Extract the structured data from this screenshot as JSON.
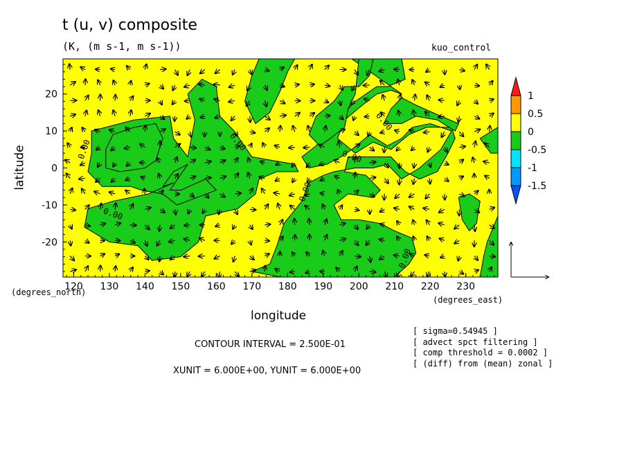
{
  "header": {
    "title": "t (u, v) composite",
    "subtitle": "(K, (m s-1, m s-1))",
    "experiment": "kuo_control"
  },
  "footer": {
    "contour_interval": "CONTOUR INTERVAL = 2.500E-01",
    "units": "XUNIT = 6.000E+00, YUNIT = 6.000E+00"
  },
  "notes": [
    "[ sigma=0.54945 ]",
    "[ advect spct filtering ]",
    "[ comp threshold = 0.0002 ]",
    "[ (diff) from (mean) zonal ]"
  ],
  "chart_data": {
    "type": "heatmap",
    "title": "t (u, v) composite",
    "subtitle": "(K, (m s-1, m s-1))",
    "xlabel": "longitude",
    "ylabel": "latitude",
    "x_unit_label": "(degrees_east)",
    "y_unit_label": "(degrees_north)",
    "xlim": [
      117,
      239
    ],
    "ylim": [
      -29.5,
      29.5
    ],
    "x_ticks": [
      120,
      130,
      140,
      150,
      160,
      170,
      180,
      190,
      200,
      210,
      220,
      230
    ],
    "y_ticks": [
      -20,
      -10,
      0,
      10,
      20
    ],
    "colorbar": {
      "levels": [
        "1",
        "0.5",
        "0",
        "-0.5",
        "-1",
        "-1.5"
      ],
      "colors": [
        "#ff1a1a",
        "#ff9900",
        "#ffff00",
        "#1acc1a",
        "#00e5ff",
        "#0099ff",
        "#0055ff"
      ]
    },
    "contour_labels": [
      {
        "text": "0.00",
        "x": 123,
        "y": 5
      },
      {
        "text": "0.00",
        "x": 131,
        "y": -12.5
      },
      {
        "text": "0.00",
        "x": 166,
        "y": 7
      },
      {
        "text": "0.00",
        "x": 185,
        "y": -6.5
      },
      {
        "text": "0.00",
        "x": 198,
        "y": 3
      },
      {
        "text": "0.00",
        "x": 207,
        "y": 12.5
      },
      {
        "text": "0.00",
        "x": 213,
        "y": -24.5
      }
    ],
    "regions_positive": [
      [
        [
          117,
          29.5
        ],
        [
          239,
          29.5
        ],
        [
          239,
          -29.5
        ],
        [
          117,
          -29.5
        ]
      ]
    ],
    "regions_negative": [
      [
        [
          125,
          10
        ],
        [
          137,
          13
        ],
        [
          147,
          14
        ],
        [
          148,
          8
        ],
        [
          152,
          3
        ],
        [
          154,
          13
        ],
        [
          152,
          20
        ],
        [
          156,
          24
        ],
        [
          160,
          22
        ],
        [
          161,
          14
        ],
        [
          165,
          10
        ],
        [
          170,
          3
        ],
        [
          176,
          2
        ],
        [
          182,
          1
        ],
        [
          183,
          -1
        ],
        [
          177,
          -1
        ],
        [
          172,
          -3
        ],
        [
          171,
          -7
        ],
        [
          166,
          -11
        ],
        [
          157,
          -13
        ],
        [
          155,
          -20
        ],
        [
          150,
          -24
        ],
        [
          142,
          -25
        ],
        [
          138,
          -21
        ],
        [
          130,
          -20
        ],
        [
          123,
          -16
        ],
        [
          124,
          -11
        ],
        [
          131,
          -9
        ],
        [
          141,
          -7
        ],
        [
          148,
          -4
        ],
        [
          145,
          -5
        ],
        [
          148,
          -1
        ],
        [
          152,
          1
        ],
        [
          147,
          -6
        ],
        [
          150,
          -6
        ],
        [
          157,
          -3
        ],
        [
          160,
          -6
        ],
        [
          149,
          -10
        ],
        [
          145,
          -7
        ],
        [
          139,
          -6
        ],
        [
          136,
          -5
        ],
        [
          128,
          -5
        ],
        [
          124,
          -1
        ],
        [
          125,
          4
        ]
      ],
      [
        [
          129,
          5
        ],
        [
          131,
          9
        ],
        [
          137,
          11
        ],
        [
          143,
          12
        ],
        [
          145,
          8
        ],
        [
          143,
          2
        ],
        [
          140,
          0
        ],
        [
          133,
          -1
        ],
        [
          129,
          0
        ]
      ],
      [
        [
          172,
          29.5
        ],
        [
          180,
          29.5
        ],
        [
          182,
          29.5
        ],
        [
          180,
          26
        ],
        [
          178,
          21
        ],
        [
          175,
          15
        ],
        [
          171,
          12
        ],
        [
          168,
          18
        ],
        [
          170,
          25
        ]
      ],
      [
        [
          198,
          29.5
        ],
        [
          212,
          29.5
        ],
        [
          213,
          24
        ],
        [
          208,
          22
        ],
        [
          205,
          22
        ],
        [
          202,
          20
        ],
        [
          199,
          18
        ],
        [
          196,
          15
        ],
        [
          192,
          12
        ],
        [
          188,
          6
        ],
        [
          184,
          3
        ],
        [
          186,
          0
        ],
        [
          191,
          1
        ],
        [
          195,
          3
        ],
        [
          198,
          5
        ],
        [
          203,
          9
        ],
        [
          208,
          6
        ],
        [
          212,
          8
        ],
        [
          215,
          11
        ],
        [
          220,
          12
        ],
        [
          226,
          10
        ],
        [
          223,
          5
        ],
        [
          217,
          0
        ],
        [
          212,
          -3
        ],
        [
          208,
          1
        ],
        [
          204,
          0
        ],
        [
          199,
          0
        ],
        [
          193,
          -1
        ],
        [
          190,
          -2
        ],
        [
          186,
          -4
        ],
        [
          184,
          -9
        ],
        [
          179,
          -15
        ],
        [
          177,
          -21
        ],
        [
          175,
          -26
        ],
        [
          170,
          -28
        ],
        [
          178,
          -29.5
        ],
        [
          195,
          -29.5
        ],
        [
          210,
          -29.5
        ],
        [
          214,
          -26
        ],
        [
          216,
          -23
        ],
        [
          215,
          -19
        ],
        [
          210,
          -17
        ],
        [
          206,
          -15
        ],
        [
          200,
          -14
        ],
        [
          195,
          -14
        ],
        [
          193,
          -10
        ],
        [
          197,
          -7
        ],
        [
          204,
          -8
        ],
        [
          206,
          -6
        ],
        [
          202,
          -2
        ],
        [
          196,
          -1
        ],
        [
          197,
          3
        ],
        [
          202,
          3
        ],
        [
          209,
          3
        ],
        [
          213,
          -1
        ],
        [
          217,
          -3
        ],
        [
          222,
          -1
        ],
        [
          225,
          4
        ],
        [
          227,
          8
        ],
        [
          226,
          11
        ],
        [
          219,
          11
        ],
        [
          214,
          9
        ],
        [
          209,
          5
        ],
        [
          204,
          7
        ],
        [
          199,
          4
        ],
        [
          194,
          8
        ],
        [
          196,
          13
        ],
        [
          201,
          17
        ],
        [
          205,
          20
        ],
        [
          209,
          21
        ],
        [
          212,
          20
        ]
      ],
      [
        [
          200,
          29.5
        ],
        [
          204,
          29.5
        ],
        [
          203,
          25
        ],
        [
          200,
          22
        ],
        [
          196,
          22
        ],
        [
          193,
          18
        ],
        [
          188,
          14
        ],
        [
          186,
          9
        ],
        [
          189,
          6
        ],
        [
          192,
          8
        ],
        [
          196,
          11
        ],
        [
          197,
          16
        ],
        [
          199,
          20
        ]
      ],
      [
        [
          207,
          12
        ],
        [
          212,
          12
        ],
        [
          216,
          14
        ],
        [
          222,
          13
        ],
        [
          227,
          10
        ],
        [
          228,
          12
        ],
        [
          223,
          14
        ],
        [
          216,
          17
        ],
        [
          212,
          19
        ],
        [
          209,
          16
        ]
      ],
      [
        [
          234,
          8
        ],
        [
          239,
          11
        ],
        [
          239,
          4
        ],
        [
          237,
          4
        ]
      ],
      [
        [
          228,
          -8
        ],
        [
          231,
          -7
        ],
        [
          234,
          -9
        ],
        [
          233,
          -15
        ],
        [
          231,
          -17
        ],
        [
          229,
          -14
        ]
      ],
      [
        [
          236,
          -20
        ],
        [
          239,
          -13
        ],
        [
          239,
          -29.5
        ],
        [
          234,
          -29.5
        ],
        [
          235,
          -24
        ]
      ]
    ],
    "vector_field": "wind (u, v) arrows on a regular grid, reference arrow length 6 m s-1"
  }
}
